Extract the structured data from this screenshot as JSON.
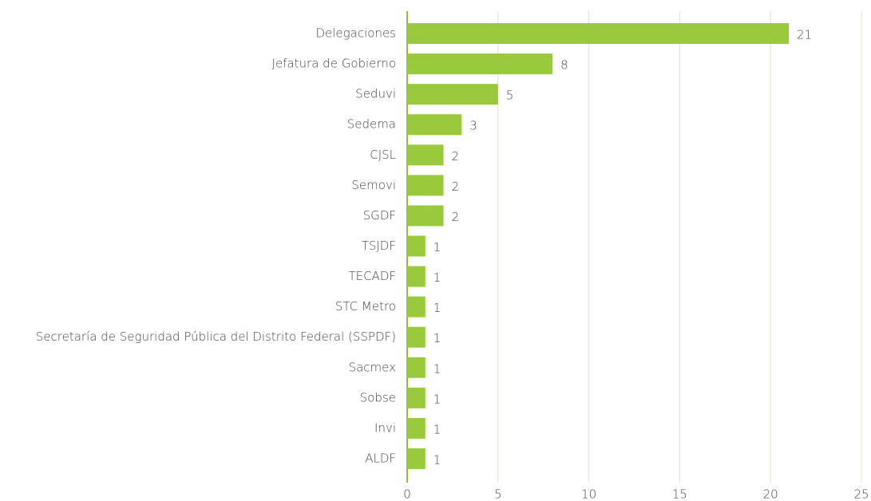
{
  "chart_data": {
    "type": "barh",
    "categories": [
      "Delegaciones",
      "Jefatura de Gobierno",
      "Seduvi",
      "Sedema",
      "CJSL",
      "Semovi",
      "SGDF",
      "TSJDF",
      "TECADF",
      "STC Metro",
      "Secretaría de Seguridad Pública del Distrito Federal (SSPDF)",
      "Sacmex",
      "Sobse",
      "Invi",
      "ALDF"
    ],
    "values": [
      21,
      8,
      5,
      3,
      2,
      2,
      2,
      1,
      1,
      1,
      1,
      1,
      1,
      1,
      1
    ],
    "color": "#99c93c",
    "xlim": [
      0,
      25
    ],
    "xticks": [
      0,
      5,
      10,
      15,
      20,
      25
    ],
    "grid": true
  }
}
